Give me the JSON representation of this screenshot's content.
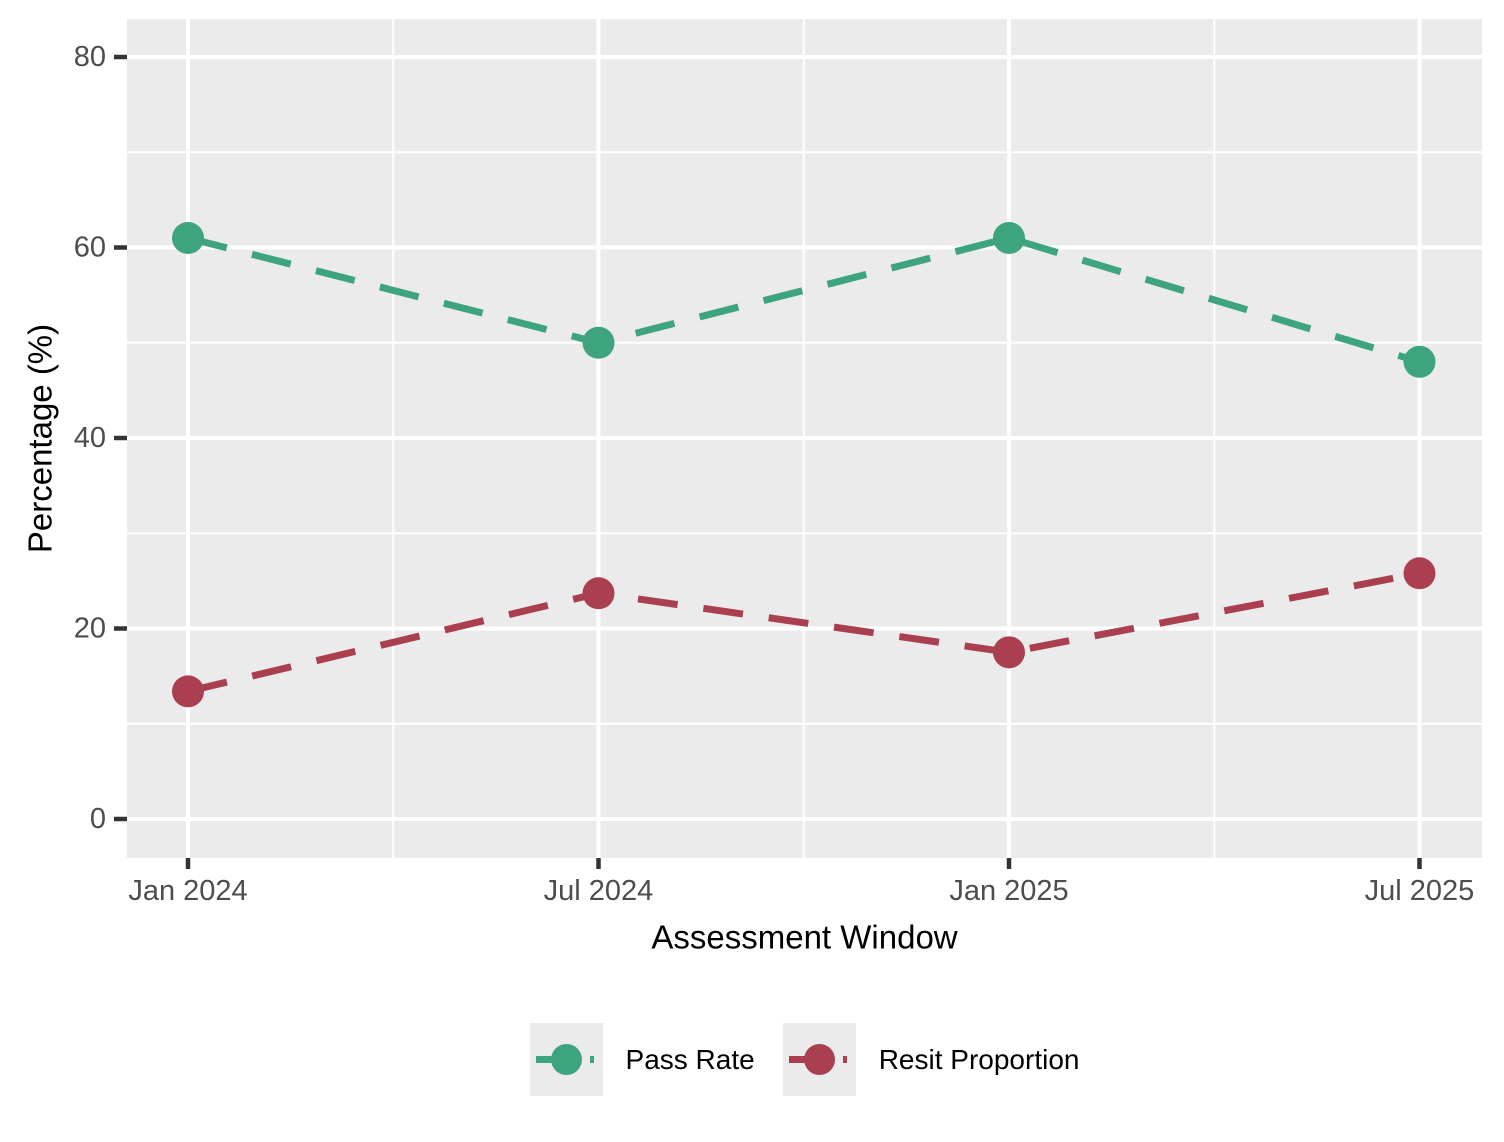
{
  "chart_data": {
    "type": "line",
    "title": "",
    "xlabel": "Assessment Window",
    "ylabel": "Percentage (%)",
    "x": [
      "Jan 2024",
      "Jul 2024",
      "Jan 2025",
      "Jul 2025"
    ],
    "series": [
      {
        "name": "Pass Rate",
        "color": "#3EA47D",
        "values": [
          61,
          50,
          61,
          48
        ],
        "linetype": "dashed",
        "marker": "circle"
      },
      {
        "name": "Resit Proportion",
        "color": "#AA404F",
        "values": [
          13.4,
          23.7,
          17.5,
          25.8
        ],
        "linetype": "dashed",
        "marker": "circle"
      }
    ],
    "ylim": [
      -4,
      84
    ],
    "yticks": [
      0,
      20,
      40,
      60,
      80
    ],
    "yticks_minor": [
      10,
      30,
      50,
      70
    ],
    "grid": "major-and-minor",
    "legend_position": "bottom",
    "style": {
      "panel_bg": "#EBEBEB",
      "grid_color": "#FFFFFF",
      "tick_mark_color": "#333333",
      "tick_label_color": "#4D4D4D",
      "axis_title_color": "#000000",
      "legend_key_bg": "#EBEBEB",
      "page_bg": "#FFFFFF"
    }
  }
}
